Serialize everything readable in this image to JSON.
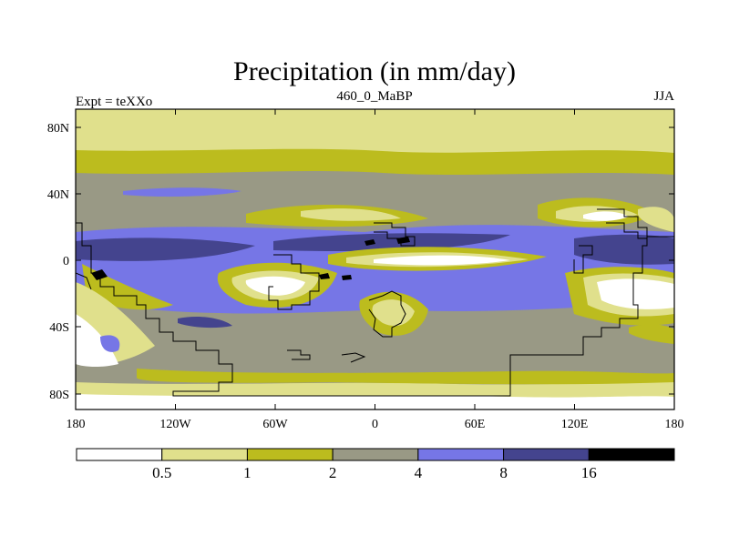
{
  "title": "Precipitation (in mm/day)",
  "subtitle_left": "Expt = teXXo",
  "subtitle_center": "460_0_MaBP",
  "subtitle_right": "JJA",
  "chart_data": {
    "type": "heatmap",
    "variable": "Precipitation",
    "units": "mm/day",
    "season": "JJA",
    "lat_ticks": [
      "80N",
      "40N",
      "0",
      "40S",
      "80S"
    ],
    "lon_ticks": [
      "180",
      "120W",
      "60W",
      "0",
      "60E",
      "120E",
      "180"
    ],
    "colorbar": {
      "levels": [
        "0.5",
        "1",
        "2",
        "4",
        "8",
        "16"
      ],
      "colors": [
        "#ffffff",
        "#e0e08c",
        "#bcbc1e",
        "#999985",
        "#7676e6",
        "#44448e",
        "#000000"
      ]
    }
  }
}
